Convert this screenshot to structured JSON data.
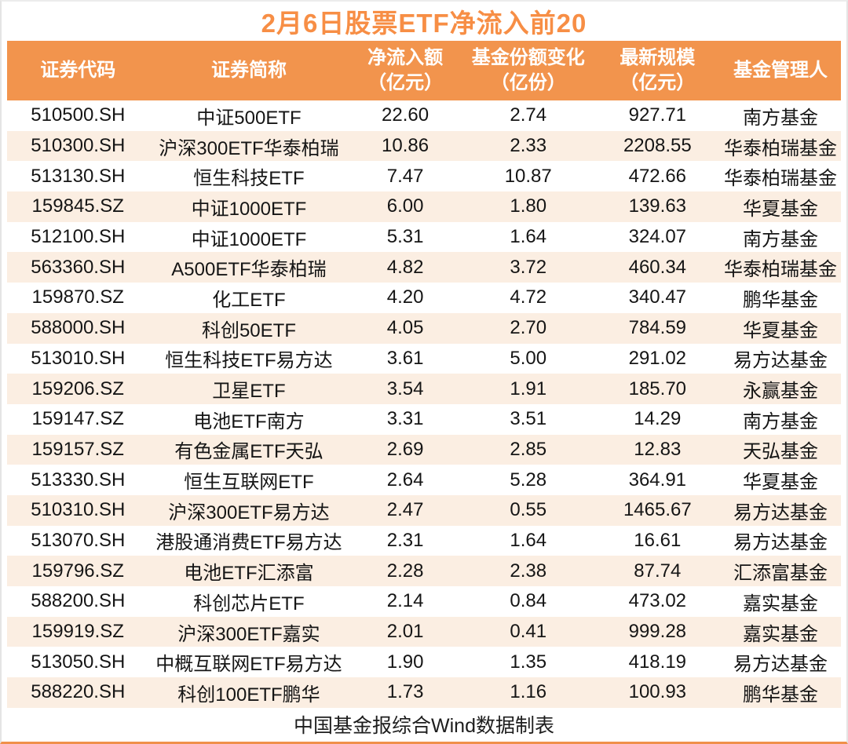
{
  "title": "2月6日股票ETF净流入前20",
  "footer": "中国基金报综合Wind数据制表",
  "colors": {
    "accent_orange": "#f2944d",
    "title_orange": "#f78e45",
    "row_alt_cream": "#fbeee2",
    "header_text": "#ffffff",
    "body_text": "#151515"
  },
  "chart_data": {
    "type": "table",
    "title": "2月6日股票ETF净流入前20",
    "columns": [
      {
        "line1": "证券代码",
        "line2": ""
      },
      {
        "line1": "证券简称",
        "line2": ""
      },
      {
        "line1": "净流入额",
        "line2": "（亿元）"
      },
      {
        "line1": "基金份额变化",
        "line2": "（亿份）"
      },
      {
        "line1": "最新规模",
        "line2": "（亿元）"
      },
      {
        "line1": "基金管理人",
        "line2": ""
      }
    ],
    "rows": [
      [
        "510500.SH",
        "中证500ETF",
        "22.60",
        "2.74",
        "927.71",
        "南方基金"
      ],
      [
        "510300.SH",
        "沪深300ETF华泰柏瑞",
        "10.86",
        "2.33",
        "2208.55",
        "华泰柏瑞基金"
      ],
      [
        "513130.SH",
        "恒生科技ETF",
        "7.47",
        "10.87",
        "472.66",
        "华泰柏瑞基金"
      ],
      [
        "159845.SZ",
        "中证1000ETF",
        "6.00",
        "1.80",
        "139.63",
        "华夏基金"
      ],
      [
        "512100.SH",
        "中证1000ETF",
        "5.31",
        "1.64",
        "324.07",
        "南方基金"
      ],
      [
        "563360.SH",
        "A500ETF华泰柏瑞",
        "4.82",
        "3.72",
        "460.34",
        "华泰柏瑞基金"
      ],
      [
        "159870.SZ",
        "化工ETF",
        "4.20",
        "4.72",
        "340.47",
        "鹏华基金"
      ],
      [
        "588000.SH",
        "科创50ETF",
        "4.05",
        "2.70",
        "784.59",
        "华夏基金"
      ],
      [
        "513010.SH",
        "恒生科技ETF易方达",
        "3.61",
        "5.00",
        "291.02",
        "易方达基金"
      ],
      [
        "159206.SZ",
        "卫星ETF",
        "3.54",
        "1.91",
        "185.70",
        "永赢基金"
      ],
      [
        "159147.SZ",
        "电池ETF南方",
        "3.31",
        "3.51",
        "14.29",
        "南方基金"
      ],
      [
        "159157.SZ",
        "有色金属ETF天弘",
        "2.69",
        "2.85",
        "12.83",
        "天弘基金"
      ],
      [
        "513330.SH",
        "恒生互联网ETF",
        "2.64",
        "5.28",
        "364.91",
        "华夏基金"
      ],
      [
        "510310.SH",
        "沪深300ETF易方达",
        "2.47",
        "0.55",
        "1465.67",
        "易方达基金"
      ],
      [
        "513070.SH",
        "港股通消费ETF易方达",
        "2.31",
        "1.64",
        "16.61",
        "易方达基金"
      ],
      [
        "159796.SZ",
        "电池ETF汇添富",
        "2.28",
        "2.38",
        "87.74",
        "汇添富基金"
      ],
      [
        "588200.SH",
        "科创芯片ETF",
        "2.14",
        "0.84",
        "473.02",
        "嘉实基金"
      ],
      [
        "159919.SZ",
        "沪深300ETF嘉实",
        "2.01",
        "0.41",
        "999.28",
        "嘉实基金"
      ],
      [
        "513050.SH",
        "中概互联网ETF易方达",
        "1.90",
        "1.35",
        "418.19",
        "易方达基金"
      ],
      [
        "588220.SH",
        "科创100ETF鹏华",
        "1.73",
        "1.16",
        "100.93",
        "鹏华基金"
      ]
    ]
  }
}
